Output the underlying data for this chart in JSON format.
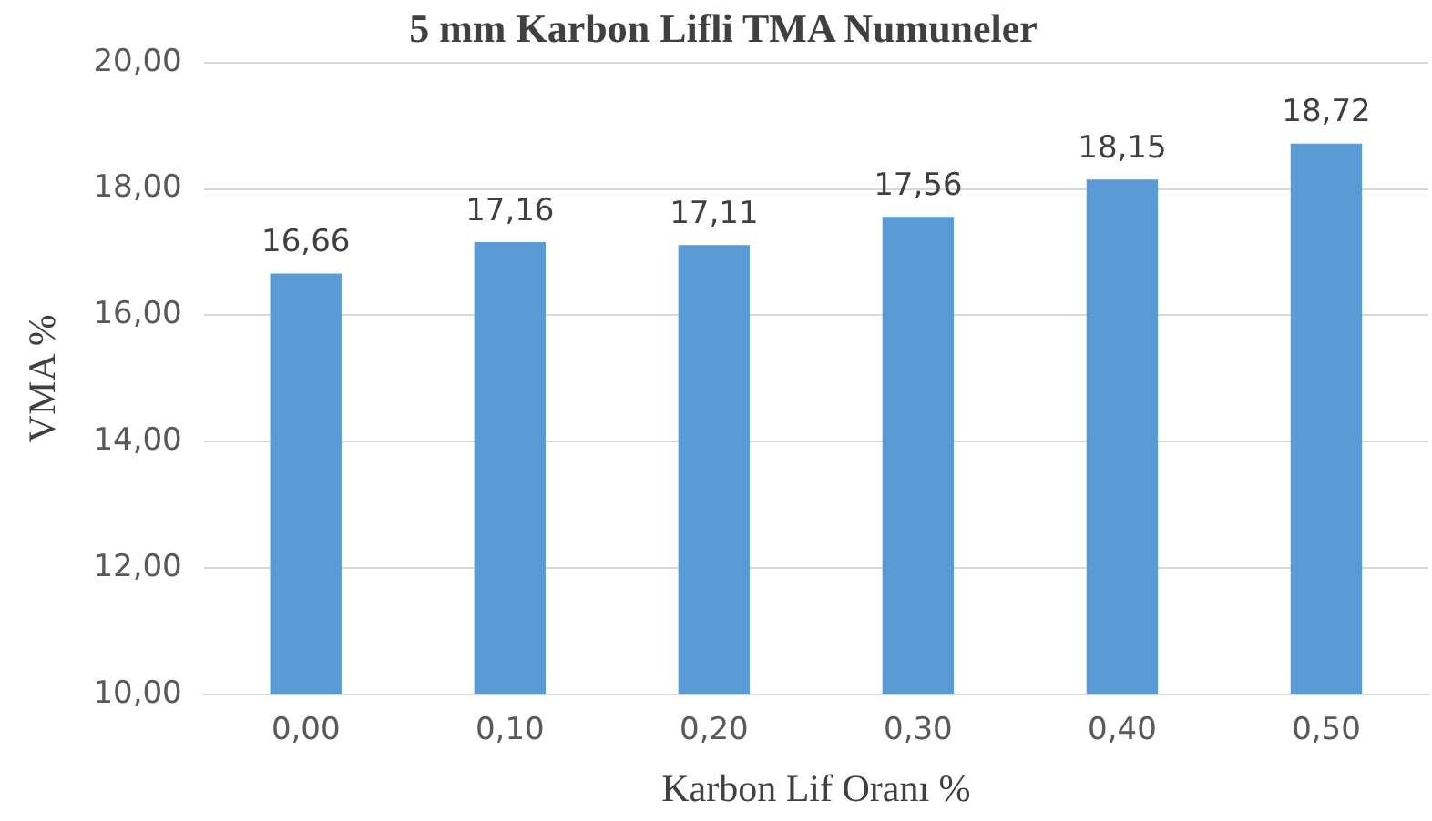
{
  "chart_data": {
    "type": "bar",
    "title": "5 mm Karbon Lifli TMA Numuneler",
    "xlabel": "Karbon Lif Oranı %",
    "ylabel": "VMA %",
    "categories": [
      "0,00",
      "0,10",
      "0,20",
      "0,30",
      "0,40",
      "0,50"
    ],
    "values": [
      16.66,
      17.16,
      17.11,
      17.56,
      18.15,
      18.72
    ],
    "value_labels": [
      "16,66",
      "17,16",
      "17,11",
      "17,56",
      "18,15",
      "18,72"
    ],
    "color": "#5b9bd5",
    "ylim": [
      10,
      20
    ],
    "yticks": [
      {
        "value": 10,
        "label": "10,00"
      },
      {
        "value": 12,
        "label": "12,00"
      },
      {
        "value": 14,
        "label": "14,00"
      },
      {
        "value": 16,
        "label": "16,00"
      },
      {
        "value": 18,
        "label": "18,00"
      },
      {
        "value": 20,
        "label": "20,00"
      }
    ],
    "grid": "y",
    "legend": false
  }
}
